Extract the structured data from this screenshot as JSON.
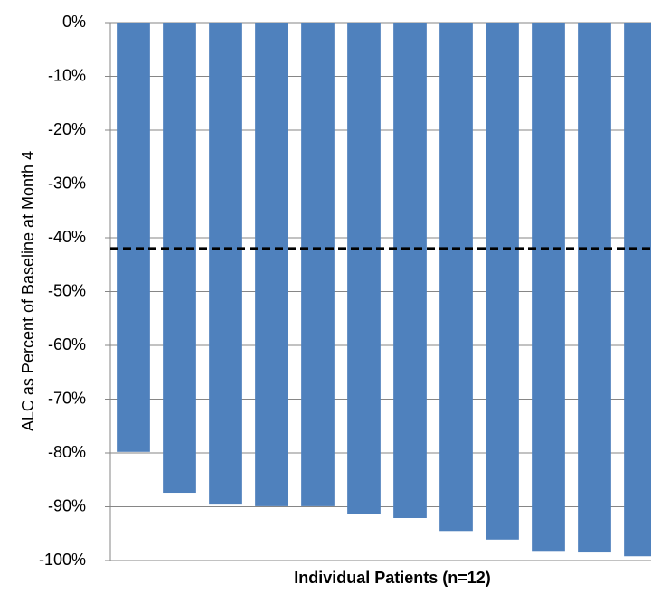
{
  "chart_data": {
    "type": "bar",
    "y_label": "ALC as Percent of Baseline at Month 4",
    "x_label": "Individual Patients (n=12)",
    "categories": [
      null,
      null,
      null,
      null,
      null,
      null,
      null,
      null,
      null,
      null,
      null,
      null
    ],
    "values": [
      -79.8,
      -87.4,
      -89.6,
      -89.9,
      -89.9,
      -91.4,
      -92.1,
      -94.5,
      -96.1,
      -98.2,
      -98.5,
      -99.2
    ],
    "color": "#4f81bd",
    "reference_line": -42,
    "reference_color": "#000000",
    "ylim": [
      -100,
      0
    ],
    "yticks": [
      {
        "value": 0,
        "label": "0%"
      },
      {
        "value": -10,
        "label": "-10%"
      },
      {
        "value": -20,
        "label": "-20%"
      },
      {
        "value": -30,
        "label": "-30%"
      },
      {
        "value": -40,
        "label": "-40%"
      },
      {
        "value": -50,
        "label": "-50%"
      },
      {
        "value": -60,
        "label": "-60%"
      },
      {
        "value": -70,
        "label": "-70%"
      },
      {
        "value": -80,
        "label": "-80%"
      },
      {
        "value": -90,
        "label": "-90%"
      },
      {
        "value": -100,
        "label": "-100%"
      }
    ],
    "grid": true
  }
}
